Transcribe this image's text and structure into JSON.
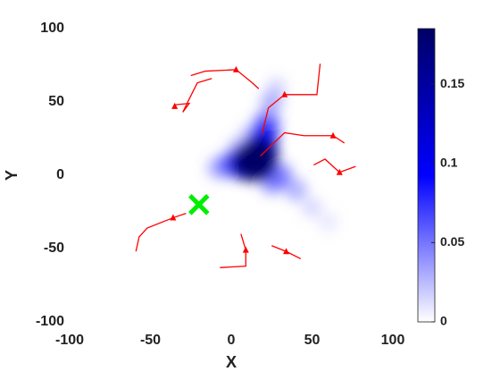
{
  "chart_data": {
    "type": "density-trajectories",
    "xlabel": "X",
    "ylabel": "Y",
    "xlim": [
      -100,
      100
    ],
    "ylim": [
      -100,
      100
    ],
    "xticks": [
      -100,
      -50,
      0,
      50,
      100
    ],
    "yticks": [
      -100,
      -50,
      0,
      50,
      100
    ],
    "colormap": [
      "#ffffff",
      "#0000ff",
      "#000066"
    ],
    "clim": [
      0,
      0.185
    ],
    "cticks": [
      0,
      0.05,
      0.1,
      0.15
    ],
    "density": [
      {
        "x": 60,
        "y": -32,
        "value": 0.02
      },
      {
        "x": 50,
        "y": -22,
        "value": 0.03
      },
      {
        "x": 28,
        "y": 60,
        "value": 0.03
      },
      {
        "x": 12,
        "y": 28,
        "value": 0.04
      },
      {
        "x": 40,
        "y": -10,
        "value": 0.05
      },
      {
        "x": 25,
        "y": 50,
        "value": 0.05
      },
      {
        "x": -8,
        "y": 5,
        "value": 0.05
      },
      {
        "x": 5,
        "y": 18,
        "value": 0.05
      },
      {
        "x": 25,
        "y": -5,
        "value": 0.06
      },
      {
        "x": 30,
        "y": 0,
        "value": 0.07
      },
      {
        "x": 22,
        "y": 35,
        "value": 0.08
      },
      {
        "x": 0,
        "y": 7,
        "value": 0.08
      },
      {
        "x": 20,
        "y": 25,
        "value": 0.1
      },
      {
        "x": 10,
        "y": 8,
        "value": 0.14
      },
      {
        "x": 18,
        "y": 15,
        "value": 0.15
      },
      {
        "x": 15,
        "y": 10,
        "value": 0.185
      }
    ],
    "trajectory_color": "#ff0000",
    "trajectories": [
      {
        "x": [
          -25,
          -16,
          3,
          13,
          17
        ],
        "y": [
          68,
          71,
          72,
          63,
          59
        ],
        "marker": [
          3,
          72
        ]
      },
      {
        "x": [
          -12,
          -21,
          -26,
          -30,
          -26,
          -35
        ],
        "y": [
          66,
          63,
          52,
          43,
          49,
          48
        ],
        "marker": [
          -35,
          47
        ]
      },
      {
        "x": [
          55,
          53,
          33,
          23,
          19
        ],
        "y": [
          76,
          55,
          55,
          46,
          28
        ],
        "marker": [
          33,
          55
        ]
      },
      {
        "x": [
          18,
          33,
          45,
          63,
          70
        ],
        "y": [
          13,
          29,
          27,
          27,
          22
        ],
        "marker": [
          63,
          27
        ]
      },
      {
        "x": [
          51,
          58,
          67,
          77
        ],
        "y": [
          7,
          11,
          2,
          6
        ],
        "marker": [
          67,
          2
        ]
      },
      {
        "x": [
          -28,
          -36,
          -52,
          -57,
          -59
        ],
        "y": [
          -26,
          -29,
          -36,
          -42,
          -52
        ],
        "marker": [
          -36,
          -29
        ]
      },
      {
        "x": [
          6,
          9,
          9,
          -7
        ],
        "y": [
          -40,
          -51,
          -62,
          -63
        ],
        "marker": [
          9,
          -51
        ]
      },
      {
        "x": [
          25,
          34,
          43
        ],
        "y": [
          -48,
          -52,
          -57
        ],
        "marker": [
          34,
          -52
        ]
      }
    ],
    "target": {
      "x": -20,
      "y": -20,
      "color": "#00ee00"
    }
  }
}
